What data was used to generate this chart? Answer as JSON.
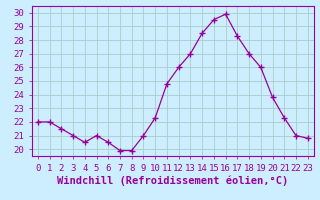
{
  "x": [
    0,
    1,
    2,
    3,
    4,
    5,
    6,
    7,
    8,
    9,
    10,
    11,
    12,
    13,
    14,
    15,
    16,
    17,
    18,
    19,
    20,
    21,
    22,
    23
  ],
  "y": [
    22.0,
    22.0,
    21.5,
    21.0,
    20.5,
    21.0,
    20.5,
    19.9,
    19.9,
    21.0,
    22.3,
    24.8,
    26.0,
    27.0,
    28.5,
    29.5,
    29.9,
    28.3,
    27.0,
    26.0,
    23.8,
    22.3,
    21.0,
    20.8
  ],
  "line_color": "#990099",
  "marker": "+",
  "marker_size": 4,
  "background_color": "#cceeff",
  "grid_color": "#aacccc",
  "xlabel": "Windchill (Refroidissement éolien,°C)",
  "xlabel_color": "#990099",
  "ylim": [
    19.5,
    30.5
  ],
  "xlim": [
    -0.5,
    23.5
  ],
  "yticks": [
    20,
    21,
    22,
    23,
    24,
    25,
    26,
    27,
    28,
    29,
    30
  ],
  "xticks": [
    0,
    1,
    2,
    3,
    4,
    5,
    6,
    7,
    8,
    9,
    10,
    11,
    12,
    13,
    14,
    15,
    16,
    17,
    18,
    19,
    20,
    21,
    22,
    23
  ],
  "tick_color": "#990099",
  "tick_fontsize": 6.5,
  "xlabel_fontsize": 7.5,
  "spine_color": "#990099",
  "fig_bg": "#cceeff"
}
